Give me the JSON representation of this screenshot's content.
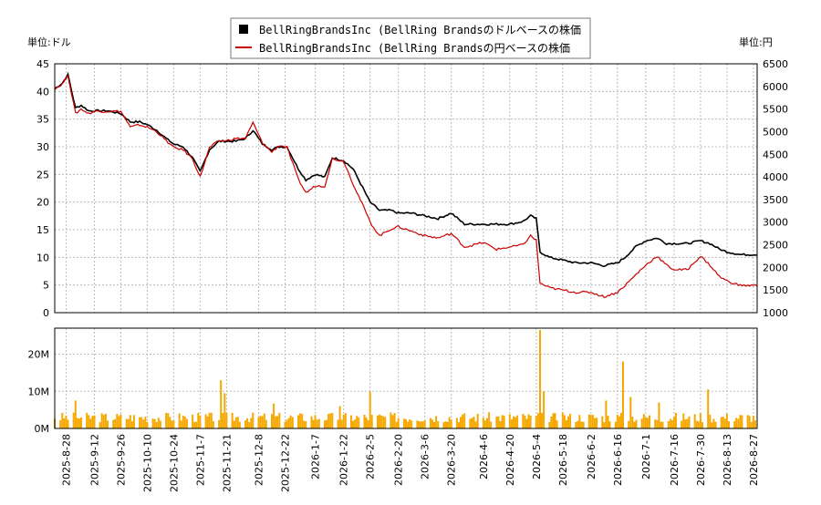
{
  "chart_data": {
    "type": "line",
    "legend": {
      "placement": "top-center",
      "entries": [
        {
          "label": "BellRingBrandsInc (BellRing Brandsのドルベースの株価",
          "color": "#000000",
          "marker": "square"
        },
        {
          "label": "BellRingBrandsInc (BellRing Brandsの円ベースの株価",
          "color": "#cc0000",
          "marker": "line"
        }
      ]
    },
    "left_unit_label": "単位:ドル",
    "right_unit_label": "単位:円",
    "price_panel": {
      "ylim_left": [
        0,
        45
      ],
      "ylim_right": [
        1000,
        6500
      ],
      "yticks_left": [
        "0",
        "5",
        "10",
        "15",
        "20",
        "25",
        "30",
        "35",
        "40",
        "45"
      ],
      "yticks_right": [
        "1000",
        "1500",
        "2000",
        "2500",
        "3000",
        "3500",
        "4000",
        "4500",
        "5000",
        "5500",
        "6000",
        "6500"
      ],
      "grid": true
    },
    "volume_panel": {
      "ylim": [
        0,
        27000000
      ],
      "yticks": [
        {
          "value": 0,
          "label": "0M"
        },
        {
          "value": 10000000,
          "label": "10M"
        },
        {
          "value": 20000000,
          "label": "20M"
        }
      ],
      "grid": true,
      "bar_color": "#f5a800"
    },
    "x_range": [
      "2025-08-22",
      "2026-08-29"
    ],
    "x_ticks": [
      "2025-8-28",
      "2025-9-12",
      "2025-9-26",
      "2025-10-10",
      "2025-10-24",
      "2025-11-7",
      "2025-11-21",
      "2025-12-8",
      "2025-12-22",
      "2026-1-7",
      "2026-1-22",
      "2026-2-5",
      "2026-2-20",
      "2026-3-6",
      "2026-3-20",
      "2026-4-6",
      "2026-4-20",
      "2026-5-4",
      "2026-5-18",
      "2026-6-2",
      "2026-6-16",
      "2026-7-1",
      "2026-7-16",
      "2026-7-30",
      "2026-8-13",
      "2026-8-27"
    ],
    "series": [
      {
        "name": "BellRingBrandsInc (BellRing Brandsのドルベースの株価",
        "axis": "left",
        "color": "#000000",
        "points": [
          [
            "2025-08-22",
            40.5
          ],
          [
            "2025-08-26",
            41.5
          ],
          [
            "2025-08-29",
            43.0
          ],
          [
            "2025-09-02",
            37.0
          ],
          [
            "2025-09-05",
            37.5
          ],
          [
            "2025-09-09",
            36.5
          ],
          [
            "2025-09-12",
            36.5
          ],
          [
            "2025-09-19",
            36.5
          ],
          [
            "2025-09-26",
            36.0
          ],
          [
            "2025-10-01",
            34.5
          ],
          [
            "2025-10-06",
            34.5
          ],
          [
            "2025-10-10",
            34.0
          ],
          [
            "2025-10-15",
            33.0
          ],
          [
            "2025-10-20",
            31.5
          ],
          [
            "2025-10-24",
            30.5
          ],
          [
            "2025-10-29",
            30.0
          ],
          [
            "2025-11-03",
            28.0
          ],
          [
            "2025-11-07",
            25.5
          ],
          [
            "2025-11-12",
            29.5
          ],
          [
            "2025-11-17",
            31.0
          ],
          [
            "2025-11-21",
            31.0
          ],
          [
            "2025-11-26",
            31.0
          ],
          [
            "2025-12-01",
            31.5
          ],
          [
            "2025-12-05",
            33.0
          ],
          [
            "2025-12-10",
            30.5
          ],
          [
            "2025-12-15",
            29.5
          ],
          [
            "2025-12-19",
            30.0
          ],
          [
            "2025-12-23",
            30.0
          ],
          [
            "2025-12-29",
            26.0
          ],
          [
            "2026-01-02",
            24.0
          ],
          [
            "2026-01-07",
            25.0
          ],
          [
            "2026-01-12",
            24.5
          ],
          [
            "2026-01-16",
            28.0
          ],
          [
            "2026-01-22",
            27.5
          ],
          [
            "2026-01-27",
            26.0
          ],
          [
            "2026-02-02",
            22.0
          ],
          [
            "2026-02-05",
            20.0
          ],
          [
            "2026-02-10",
            18.5
          ],
          [
            "2026-02-16",
            18.5
          ],
          [
            "2026-02-20",
            18.0
          ],
          [
            "2026-02-27",
            18.0
          ],
          [
            "2026-03-06",
            17.5
          ],
          [
            "2026-03-13",
            17.0
          ],
          [
            "2026-03-20",
            18.0
          ],
          [
            "2026-03-27",
            16.0
          ],
          [
            "2026-04-06",
            16.0
          ],
          [
            "2026-04-13",
            16.0
          ],
          [
            "2026-04-20",
            16.0
          ],
          [
            "2026-04-27",
            16.5
          ],
          [
            "2026-05-01",
            17.5
          ],
          [
            "2026-05-04",
            17.0
          ],
          [
            "2026-05-06",
            11.0
          ],
          [
            "2026-05-11",
            10.0
          ],
          [
            "2026-05-18",
            9.5
          ],
          [
            "2026-05-25",
            9.0
          ],
          [
            "2026-06-02",
            9.0
          ],
          [
            "2026-06-09",
            8.5
          ],
          [
            "2026-06-16",
            9.0
          ],
          [
            "2026-06-20",
            10.0
          ],
          [
            "2026-06-26",
            12.0
          ],
          [
            "2026-07-01",
            13.0
          ],
          [
            "2026-07-07",
            13.5
          ],
          [
            "2026-07-12",
            12.5
          ],
          [
            "2026-07-16",
            12.5
          ],
          [
            "2026-07-23",
            12.5
          ],
          [
            "2026-07-30",
            13.0
          ],
          [
            "2026-08-04",
            12.5
          ],
          [
            "2026-08-09",
            11.5
          ],
          [
            "2026-08-13",
            11.0
          ],
          [
            "2026-08-20",
            10.5
          ],
          [
            "2026-08-29",
            10.5
          ]
        ]
      },
      {
        "name": "BellRingBrandsInc (BellRing Brandsの円ベースの株価",
        "axis": "right",
        "color": "#cc0000",
        "points": [
          [
            "2025-08-22",
            5950
          ],
          [
            "2025-08-26",
            6050
          ],
          [
            "2025-08-29",
            6250
          ],
          [
            "2025-09-02",
            5400
          ],
          [
            "2025-09-05",
            5500
          ],
          [
            "2025-09-09",
            5400
          ],
          [
            "2025-09-12",
            5450
          ],
          [
            "2025-09-19",
            5450
          ],
          [
            "2025-09-26",
            5450
          ],
          [
            "2025-10-01",
            5100
          ],
          [
            "2025-10-06",
            5150
          ],
          [
            "2025-10-10",
            5100
          ],
          [
            "2025-10-15",
            5000
          ],
          [
            "2025-10-20",
            4800
          ],
          [
            "2025-10-24",
            4650
          ],
          [
            "2025-10-29",
            4600
          ],
          [
            "2025-11-03",
            4400
          ],
          [
            "2025-11-07",
            4000
          ],
          [
            "2025-11-12",
            4650
          ],
          [
            "2025-11-17",
            4800
          ],
          [
            "2025-11-21",
            4800
          ],
          [
            "2025-11-26",
            4850
          ],
          [
            "2025-12-01",
            4850
          ],
          [
            "2025-12-05",
            5200
          ],
          [
            "2025-12-10",
            4750
          ],
          [
            "2025-12-15",
            4550
          ],
          [
            "2025-12-19",
            4700
          ],
          [
            "2025-12-23",
            4650
          ],
          [
            "2025-12-29",
            3950
          ],
          [
            "2026-01-02",
            3650
          ],
          [
            "2026-01-07",
            3800
          ],
          [
            "2026-01-12",
            3800
          ],
          [
            "2026-01-16",
            4400
          ],
          [
            "2026-01-22",
            4350
          ],
          [
            "2026-01-27",
            3850
          ],
          [
            "2026-02-02",
            3300
          ],
          [
            "2026-02-05",
            3000
          ],
          [
            "2026-02-10",
            2700
          ],
          [
            "2026-02-16",
            2850
          ],
          [
            "2026-02-20",
            2900
          ],
          [
            "2026-02-27",
            2800
          ],
          [
            "2026-03-06",
            2700
          ],
          [
            "2026-03-13",
            2650
          ],
          [
            "2026-03-20",
            2750
          ],
          [
            "2026-03-27",
            2450
          ],
          [
            "2026-04-06",
            2550
          ],
          [
            "2026-04-13",
            2400
          ],
          [
            "2026-04-20",
            2450
          ],
          [
            "2026-04-27",
            2500
          ],
          [
            "2026-05-01",
            2700
          ],
          [
            "2026-05-04",
            2600
          ],
          [
            "2026-05-06",
            1650
          ],
          [
            "2026-05-11",
            1550
          ],
          [
            "2026-05-18",
            1500
          ],
          [
            "2026-05-25",
            1450
          ],
          [
            "2026-06-02",
            1450
          ],
          [
            "2026-06-09",
            1350
          ],
          [
            "2026-06-16",
            1450
          ],
          [
            "2026-06-20",
            1600
          ],
          [
            "2026-06-26",
            1850
          ],
          [
            "2026-07-01",
            2050
          ],
          [
            "2026-07-07",
            2250
          ],
          [
            "2026-07-12",
            2050
          ],
          [
            "2026-07-16",
            1950
          ],
          [
            "2026-07-23",
            1950
          ],
          [
            "2026-07-30",
            2250
          ],
          [
            "2026-08-04",
            2050
          ],
          [
            "2026-08-09",
            1800
          ],
          [
            "2026-08-13",
            1700
          ],
          [
            "2026-08-20",
            1600
          ],
          [
            "2026-08-29",
            1600
          ]
        ]
      }
    ],
    "volume": {
      "dates_start": "2025-08-22",
      "dates_end": "2026-08-29",
      "base": 3000000,
      "spikes": [
        [
          "2025-09-02",
          7500000
        ],
        [
          "2025-11-18",
          13000000
        ],
        [
          "2025-11-20",
          9500000
        ],
        [
          "2025-12-16",
          6700000
        ],
        [
          "2026-01-20",
          6000000
        ],
        [
          "2026-02-05",
          10000000
        ],
        [
          "2026-05-06",
          26500000
        ],
        [
          "2026-05-08",
          10000000
        ],
        [
          "2026-06-10",
          7500000
        ],
        [
          "2026-06-19",
          18000000
        ],
        [
          "2026-06-23",
          8500000
        ],
        [
          "2026-07-08",
          7000000
        ],
        [
          "2026-08-03",
          10500000
        ]
      ]
    }
  }
}
